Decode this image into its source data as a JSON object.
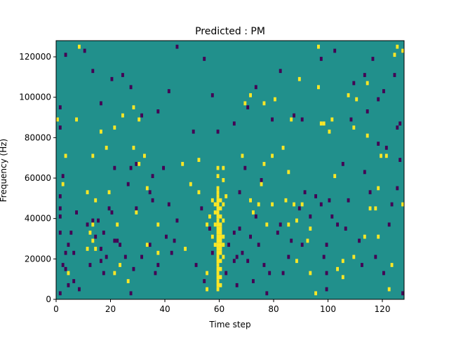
{
  "chart_data": {
    "type": "heatmap",
    "title": "Predicted : PM",
    "xlabel": "Time step",
    "ylabel": "Frequency (Hz)",
    "xlim": [
      0,
      128
    ],
    "ylim": [
      0,
      128000
    ],
    "xticks": [
      0,
      20,
      40,
      60,
      80,
      100,
      120
    ],
    "yticks": [
      0,
      20000,
      40000,
      60000,
      80000,
      100000,
      120000
    ],
    "xtick_labels": [
      "0",
      "20",
      "40",
      "60",
      "80",
      "100",
      "120"
    ],
    "ytick_labels": [
      "0",
      "20000",
      "40000",
      "60000",
      "80000",
      "100000",
      "120000"
    ],
    "grid": false,
    "legend": "none",
    "colors": {
      "background_class": "#21908c",
      "high_class": "#fde725",
      "low_class": "#440154"
    },
    "cell_size": {
      "time_steps": 1,
      "frequency_hz": 2000
    },
    "yellow_cells": [
      [
        60,
        4
      ],
      [
        60,
        6
      ],
      [
        60,
        8
      ],
      [
        60,
        10
      ],
      [
        60,
        12
      ],
      [
        60,
        14
      ],
      [
        60,
        16
      ],
      [
        60,
        18
      ],
      [
        60,
        20
      ],
      [
        60,
        22
      ],
      [
        60,
        24
      ],
      [
        60,
        26
      ],
      [
        60,
        28
      ],
      [
        60,
        30
      ],
      [
        60,
        32
      ],
      [
        60,
        34
      ],
      [
        60,
        36
      ],
      [
        60,
        38
      ],
      [
        60,
        40
      ],
      [
        60,
        42
      ],
      [
        60,
        44
      ],
      [
        60,
        46
      ],
      [
        60,
        48
      ],
      [
        60,
        50
      ],
      [
        60,
        52
      ],
      [
        60,
        54
      ],
      [
        61,
        6
      ],
      [
        61,
        10
      ],
      [
        61,
        14
      ],
      [
        61,
        18
      ],
      [
        61,
        22
      ],
      [
        61,
        24
      ],
      [
        61,
        26
      ],
      [
        61,
        28
      ],
      [
        61,
        30
      ],
      [
        61,
        32
      ],
      [
        61,
        34
      ],
      [
        61,
        36
      ],
      [
        61,
        40
      ],
      [
        61,
        44
      ],
      [
        61,
        48
      ],
      [
        62,
        20
      ],
      [
        62,
        26
      ],
      [
        62,
        30
      ],
      [
        62,
        38
      ],
      [
        62,
        46
      ],
      [
        59,
        26
      ],
      [
        59,
        36
      ],
      [
        59,
        42
      ],
      [
        59,
        46
      ],
      [
        56,
        4
      ],
      [
        56,
        12
      ],
      [
        56,
        36
      ],
      [
        57,
        40
      ],
      [
        58,
        30
      ],
      [
        58,
        48
      ],
      [
        60,
        60
      ],
      [
        60,
        64
      ],
      [
        62,
        64
      ],
      [
        62,
        58
      ],
      [
        63,
        50
      ],
      [
        14,
        28
      ],
      [
        14,
        36
      ],
      [
        13,
        32
      ],
      [
        15,
        24
      ],
      [
        15,
        48
      ],
      [
        12,
        24
      ],
      [
        12,
        52
      ],
      [
        34,
        26
      ],
      [
        34,
        54
      ],
      [
        31,
        66
      ],
      [
        33,
        70
      ],
      [
        38,
        36
      ],
      [
        38,
        22
      ],
      [
        48,
        24
      ],
      [
        47,
        66
      ],
      [
        50,
        56
      ],
      [
        53,
        52
      ],
      [
        53,
        68
      ],
      [
        23,
        36
      ],
      [
        22,
        12
      ],
      [
        22,
        84
      ],
      [
        25,
        90
      ],
      [
        29,
        74
      ],
      [
        29,
        94
      ],
      [
        31,
        88
      ],
      [
        24,
        16
      ],
      [
        27,
        8
      ],
      [
        1,
        88
      ],
      [
        5,
        12
      ],
      [
        3,
        56
      ],
      [
        4,
        70
      ],
      [
        8,
        88
      ],
      [
        9,
        124
      ],
      [
        14,
        70
      ],
      [
        19,
        74
      ],
      [
        20,
        52
      ],
      [
        30,
        42
      ],
      [
        17,
        82
      ],
      [
        73,
        42
      ],
      [
        75,
        46
      ],
      [
        76,
        56
      ],
      [
        77,
        66
      ],
      [
        78,
        36
      ],
      [
        80,
        46
      ],
      [
        80,
        70
      ],
      [
        84,
        74
      ],
      [
        85,
        48
      ],
      [
        86,
        36
      ],
      [
        87,
        88
      ],
      [
        88,
        46
      ],
      [
        89,
        18
      ],
      [
        89,
        38
      ],
      [
        91,
        46
      ],
      [
        94,
        34
      ],
      [
        97,
        104
      ],
      [
        98,
        86
      ],
      [
        102,
        88
      ],
      [
        104,
        14
      ],
      [
        106,
        10
      ],
      [
        106,
        18
      ],
      [
        108,
        100
      ],
      [
        110,
        20
      ],
      [
        114,
        30
      ],
      [
        115,
        106
      ],
      [
        116,
        44
      ],
      [
        119,
        30
      ],
      [
        119,
        54
      ],
      [
        122,
        70
      ],
      [
        124,
        16
      ],
      [
        126,
        124
      ],
      [
        128,
        46
      ],
      [
        128,
        122
      ],
      [
        70,
        96
      ],
      [
        72,
        100
      ],
      [
        81,
        98
      ],
      [
        86,
        62
      ],
      [
        90,
        108
      ],
      [
        94,
        12
      ],
      [
        96,
        2
      ],
      [
        99,
        86
      ],
      [
        101,
        82
      ],
      [
        103,
        60
      ],
      [
        110,
        84
      ],
      [
        111,
        98
      ],
      [
        115,
        80
      ],
      [
        118,
        44
      ],
      [
        120,
        70
      ],
      [
        123,
        4
      ],
      [
        125,
        120
      ],
      [
        69,
        70
      ],
      [
        72,
        48
      ],
      [
        77,
        96
      ],
      [
        93,
        28
      ],
      [
        97,
        124
      ]
    ],
    "purple_cells": [
      [
        2,
        2
      ],
      [
        2,
        32
      ],
      [
        2,
        40
      ],
      [
        2,
        44
      ],
      [
        2,
        50
      ],
      [
        2,
        84
      ],
      [
        2,
        94
      ],
      [
        3,
        16
      ],
      [
        3,
        60
      ],
      [
        4,
        14
      ],
      [
        4,
        22
      ],
      [
        5,
        6
      ],
      [
        5,
        26
      ],
      [
        6,
        32
      ],
      [
        7,
        8
      ],
      [
        7,
        22
      ],
      [
        8,
        42
      ],
      [
        9,
        4
      ],
      [
        12,
        36
      ],
      [
        13,
        16
      ],
      [
        14,
        38
      ],
      [
        15,
        30
      ],
      [
        16,
        38
      ],
      [
        17,
        18
      ],
      [
        17,
        24
      ],
      [
        18,
        12
      ],
      [
        18,
        32
      ],
      [
        19,
        20
      ],
      [
        20,
        44
      ],
      [
        21,
        42
      ],
      [
        22,
        28
      ],
      [
        23,
        28
      ],
      [
        24,
        26
      ],
      [
        26,
        20
      ],
      [
        27,
        56
      ],
      [
        28,
        2
      ],
      [
        28,
        64
      ],
      [
        29,
        14
      ],
      [
        30,
        44
      ],
      [
        30,
        66
      ],
      [
        32,
        20
      ],
      [
        35,
        26
      ],
      [
        35,
        52
      ],
      [
        36,
        48
      ],
      [
        36,
        60
      ],
      [
        37,
        12
      ],
      [
        38,
        16
      ],
      [
        40,
        64
      ],
      [
        41,
        30
      ],
      [
        42,
        46
      ],
      [
        43,
        22
      ],
      [
        44,
        28
      ],
      [
        45,
        38
      ],
      [
        52,
        16
      ],
      [
        54,
        44
      ],
      [
        55,
        8
      ],
      [
        57,
        34
      ],
      [
        58,
        22
      ],
      [
        63,
        12
      ],
      [
        64,
        26
      ],
      [
        66,
        18
      ],
      [
        66,
        32
      ],
      [
        67,
        20
      ],
      [
        67,
        6
      ],
      [
        68,
        34
      ],
      [
        68,
        52
      ],
      [
        69,
        22
      ],
      [
        70,
        64
      ],
      [
        71,
        18
      ],
      [
        72,
        30
      ],
      [
        73,
        8
      ],
      [
        74,
        40
      ],
      [
        75,
        26
      ],
      [
        76,
        58
      ],
      [
        77,
        16
      ],
      [
        78,
        2
      ],
      [
        79,
        12
      ],
      [
        82,
        32
      ],
      [
        83,
        36
      ],
      [
        84,
        12
      ],
      [
        86,
        20
      ],
      [
        87,
        28
      ],
      [
        88,
        90
      ],
      [
        90,
        44
      ],
      [
        91,
        26
      ],
      [
        92,
        52
      ],
      [
        94,
        40
      ],
      [
        96,
        50
      ],
      [
        98,
        46
      ],
      [
        99,
        20
      ],
      [
        100,
        12
      ],
      [
        100,
        4
      ],
      [
        100,
        26
      ],
      [
        101,
        48
      ],
      [
        102,
        40
      ],
      [
        104,
        36
      ],
      [
        106,
        66
      ],
      [
        107,
        34
      ],
      [
        108,
        48
      ],
      [
        109,
        88
      ],
      [
        112,
        28
      ],
      [
        113,
        16
      ],
      [
        114,
        62
      ],
      [
        115,
        92
      ],
      [
        116,
        52
      ],
      [
        118,
        20
      ],
      [
        119,
        76
      ],
      [
        121,
        12
      ],
      [
        121,
        102
      ],
      [
        123,
        36
      ],
      [
        124,
        46
      ],
      [
        125,
        110
      ],
      [
        126,
        54
      ],
      [
        127,
        68
      ],
      [
        127,
        86
      ],
      [
        128,
        2
      ],
      [
        128,
        122
      ],
      [
        4,
        120
      ],
      [
        11,
        122
      ],
      [
        14,
        112
      ],
      [
        17,
        96
      ],
      [
        21,
        108
      ],
      [
        22,
        64
      ],
      [
        25,
        110
      ],
      [
        28,
        104
      ],
      [
        32,
        90
      ],
      [
        38,
        92
      ],
      [
        42,
        102
      ],
      [
        45,
        124
      ],
      [
        51,
        82
      ],
      [
        55,
        118
      ],
      [
        58,
        100
      ],
      [
        60,
        82
      ],
      [
        66,
        86
      ],
      [
        71,
        94
      ],
      [
        74,
        104
      ],
      [
        80,
        88
      ],
      [
        83,
        112
      ],
      [
        91,
        88
      ],
      [
        98,
        118
      ],
      [
        103,
        122
      ],
      [
        110,
        106
      ],
      [
        114,
        110
      ],
      [
        117,
        118
      ],
      [
        119,
        98
      ],
      [
        122,
        74
      ],
      [
        126,
        84
      ]
    ]
  }
}
